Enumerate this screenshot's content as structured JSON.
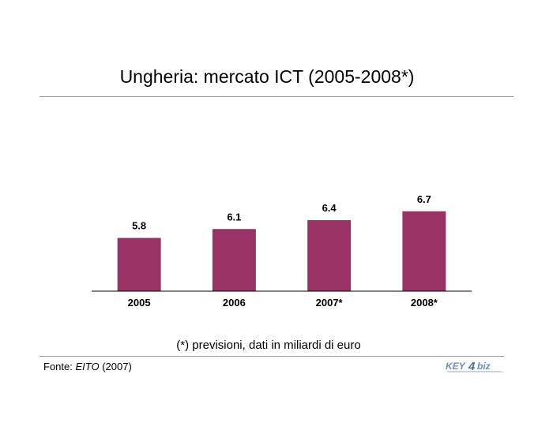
{
  "title": "Ungheria: mercato ICT (2005-2008*)",
  "note": "(*) previsioni, dati in miliardi di euro",
  "source": {
    "prefix": "Fonte: ",
    "name": "EITO",
    "year": " (2007)"
  },
  "logo": {
    "part1": "KEY",
    "part2": "4",
    "part3": "biz"
  },
  "colors": {
    "bar": "#993366",
    "rule": "#9a9a9a"
  },
  "chart_data": {
    "type": "bar",
    "title": "Ungheria: mercato ICT (2005-2008*)",
    "xlabel": "",
    "ylabel": "",
    "categories": [
      "2005",
      "2006",
      "2007*",
      "2008*"
    ],
    "values": [
      5.8,
      6.1,
      6.4,
      6.7
    ],
    "data_labels": [
      "5.8",
      "6.1",
      "6.4",
      "6.7"
    ],
    "grid": false,
    "legend": "none"
  }
}
